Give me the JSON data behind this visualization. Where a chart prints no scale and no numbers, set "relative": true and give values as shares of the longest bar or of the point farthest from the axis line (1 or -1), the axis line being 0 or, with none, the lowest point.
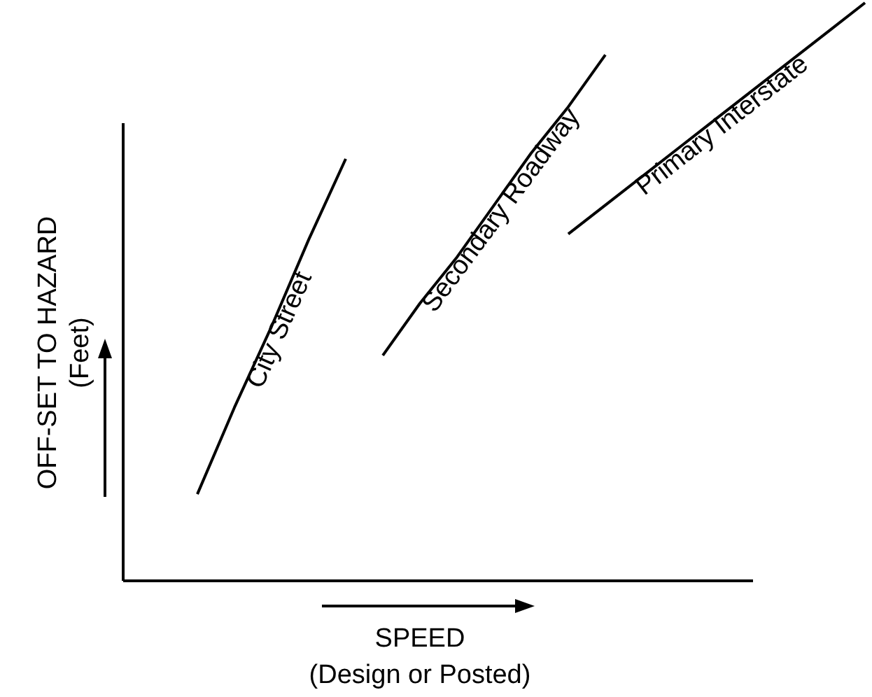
{
  "chart_data": {
    "type": "line",
    "relative": true,
    "xlabel": "SPEED\n(Design or Posted)",
    "ylabel": "OFF-SET TO HAZARD\n(Feet)",
    "marker": "none",
    "line_style": "solid",
    "categories": [
      null,
      null,
      null,
      null,
      null,
      null,
      null,
      null,
      null,
      null,
      null,
      null,
      null,
      null,
      null,
      null,
      null,
      null,
      null,
      null,
      null
    ],
    "series": [
      {
        "name": "City Street",
        "color": "#000000",
        "values": [
          null,
          null,
          0.15,
          0.3,
          0.44,
          0.59,
          0.73,
          null,
          null,
          null,
          null,
          null,
          null,
          null,
          null,
          null,
          null,
          null,
          null,
          null,
          null
        ]
      },
      {
        "name": "Secondary Roadway",
        "color": "#000000",
        "values": [
          null,
          null,
          null,
          null,
          null,
          null,
          null,
          0.39,
          0.48,
          0.56,
          0.65,
          0.74,
          0.82,
          0.91,
          null,
          null,
          null,
          null,
          null,
          null,
          null
        ]
      },
      {
        "name": "Primary Interstate",
        "color": "#000000",
        "values": [
          null,
          null,
          null,
          null,
          null,
          null,
          null,
          null,
          null,
          null,
          null,
          null,
          0.6,
          0.65,
          0.7,
          0.75,
          0.8,
          0.85,
          0.9,
          0.95,
          1.0
        ]
      }
    ]
  }
}
